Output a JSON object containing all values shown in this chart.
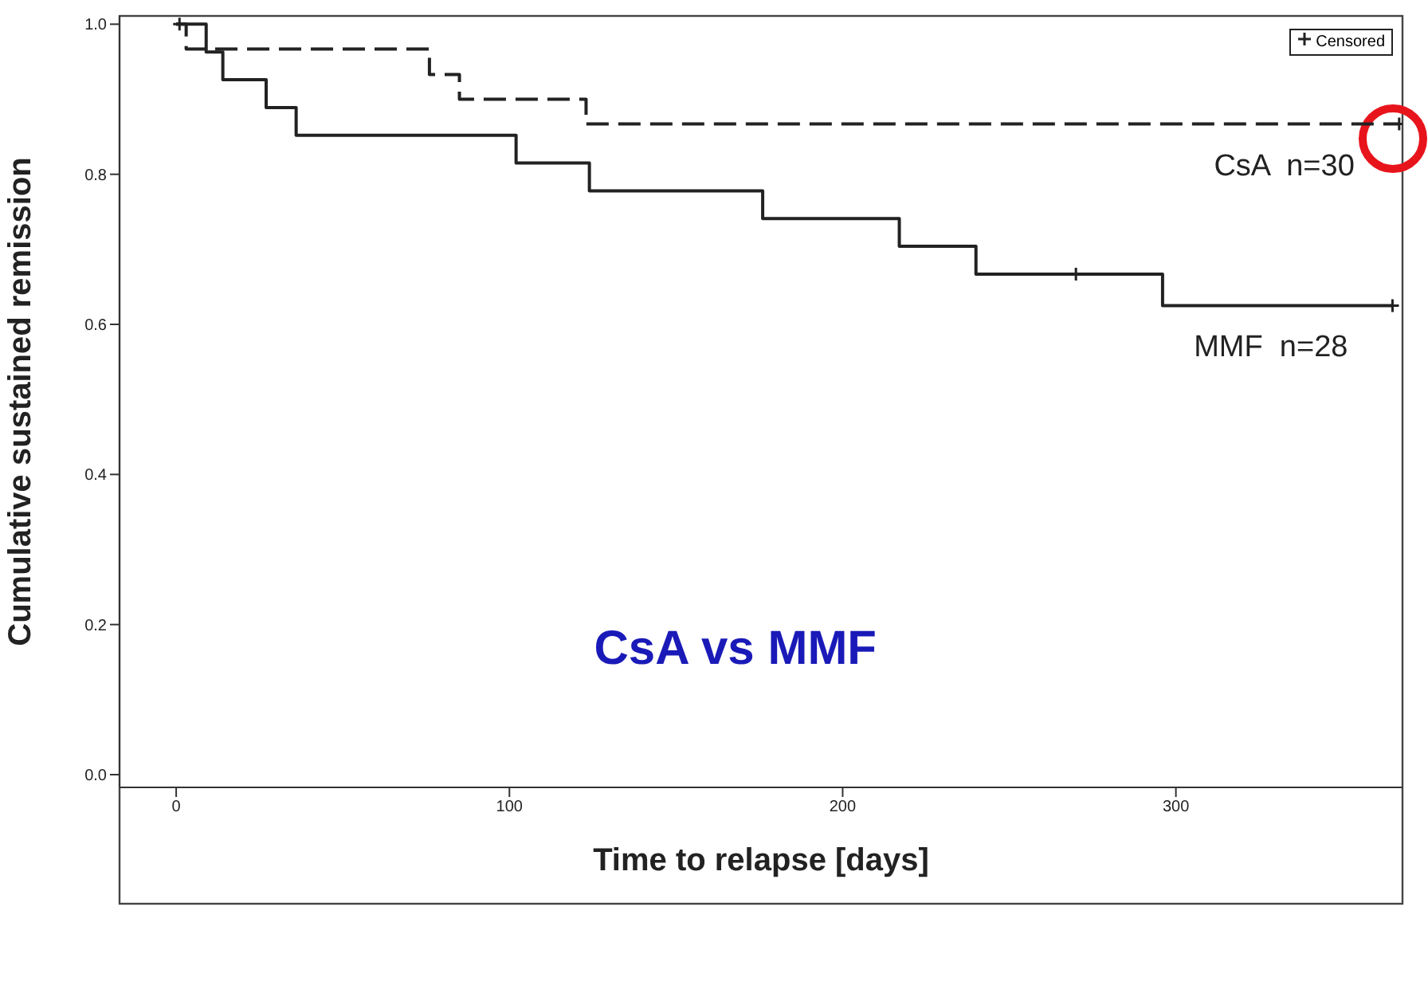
{
  "chart_data": {
    "type": "step",
    "xlabel": "Time to relapse [days]",
    "ylabel": "Cumulative sustained remission",
    "xlim": [
      -17,
      368
    ],
    "ylim": [
      -0.017,
      1.011
    ],
    "xticks": [
      0,
      100,
      200,
      300
    ],
    "yticks": [
      {
        "value": 0,
        "label": "0.0"
      },
      {
        "value": 0.2,
        "label": "0.2"
      },
      {
        "value": 0.4,
        "label": "0.4"
      },
      {
        "value": 0.6,
        "label": "0.6"
      },
      {
        "value": 0.8,
        "label": "0.8"
      },
      {
        "value": 1,
        "label": "1.0"
      }
    ],
    "grid": false,
    "legend": "top right",
    "series": [
      {
        "name": "CsA  n=30",
        "color": "#222222",
        "line_style": "dashed",
        "x": [
          0,
          3,
          76,
          85,
          123,
          367
        ],
        "values": [
          1.0,
          0.967,
          0.933,
          0.9,
          0.867,
          0.867
        ]
      },
      {
        "name": "MMF  n=28",
        "color": "#222222",
        "line_style": "solid",
        "x": [
          0,
          9,
          14,
          27,
          36,
          102,
          124,
          176,
          217,
          240,
          296,
          365
        ],
        "values": [
          1.0,
          0.963,
          0.926,
          0.889,
          0.852,
          0.815,
          0.778,
          0.741,
          0.704,
          0.667,
          0.625,
          0.625
        ]
      },
      {
        "name": "Censored",
        "type": "scatter",
        "marker": "cross",
        "color": "#222222",
        "x": [
          1,
          270,
          365,
          367
        ],
        "values": [
          1.0,
          0.667,
          0.625,
          0.867
        ]
      }
    ],
    "annotations": [
      "CsA vs MMF"
    ]
  }
}
